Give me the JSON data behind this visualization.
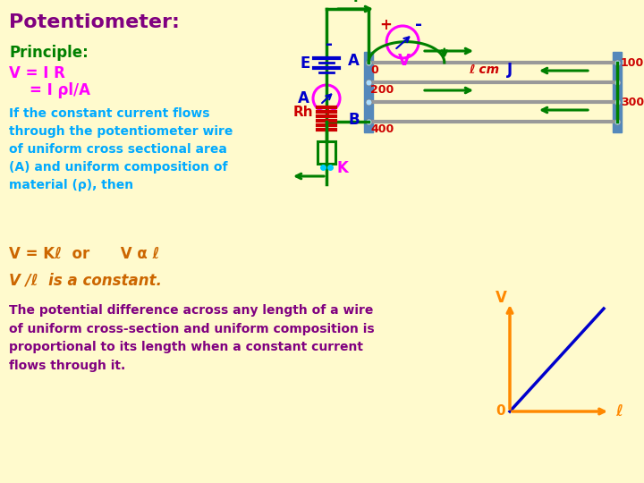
{
  "bg_color": "#FFFACD",
  "title": "Potentiometer:",
  "title_color": "#800080",
  "principle_label": "Principle:",
  "principle_color": "#008000",
  "eq1": "V = I R",
  "eq2": "    = I ρl/A",
  "eq_color": "#FF00FF",
  "desc": "If the constant current flows\nthrough the potentiometer wire\nof uniform cross sectional area\n(A) and uniform composition of\nmaterial (ρ), then",
  "desc_color": "#00AAFF",
  "eq3": "V = Kℓ  or      V α ℓ",
  "eq3_color": "#CC6600",
  "vl_text": "V /ℓ  is a constant.",
  "vl_color": "#CC6600",
  "bottom_desc": "The potential difference across any length of a wire\nof uniform cross-section and uniform composition is\nproportional to its length when a constant current\nflows through it.",
  "bottom_desc_color": "#800080",
  "graph_line_color": "#0000CC",
  "graph_axis_color": "#FF8800",
  "wire_color": "#999999",
  "green_color": "#008000",
  "red_color": "#CC0000",
  "blue_color": "#0000CC",
  "magenta_color": "#FF00FF",
  "cyan_color": "#00CCFF",
  "connector_color": "#5588BB"
}
